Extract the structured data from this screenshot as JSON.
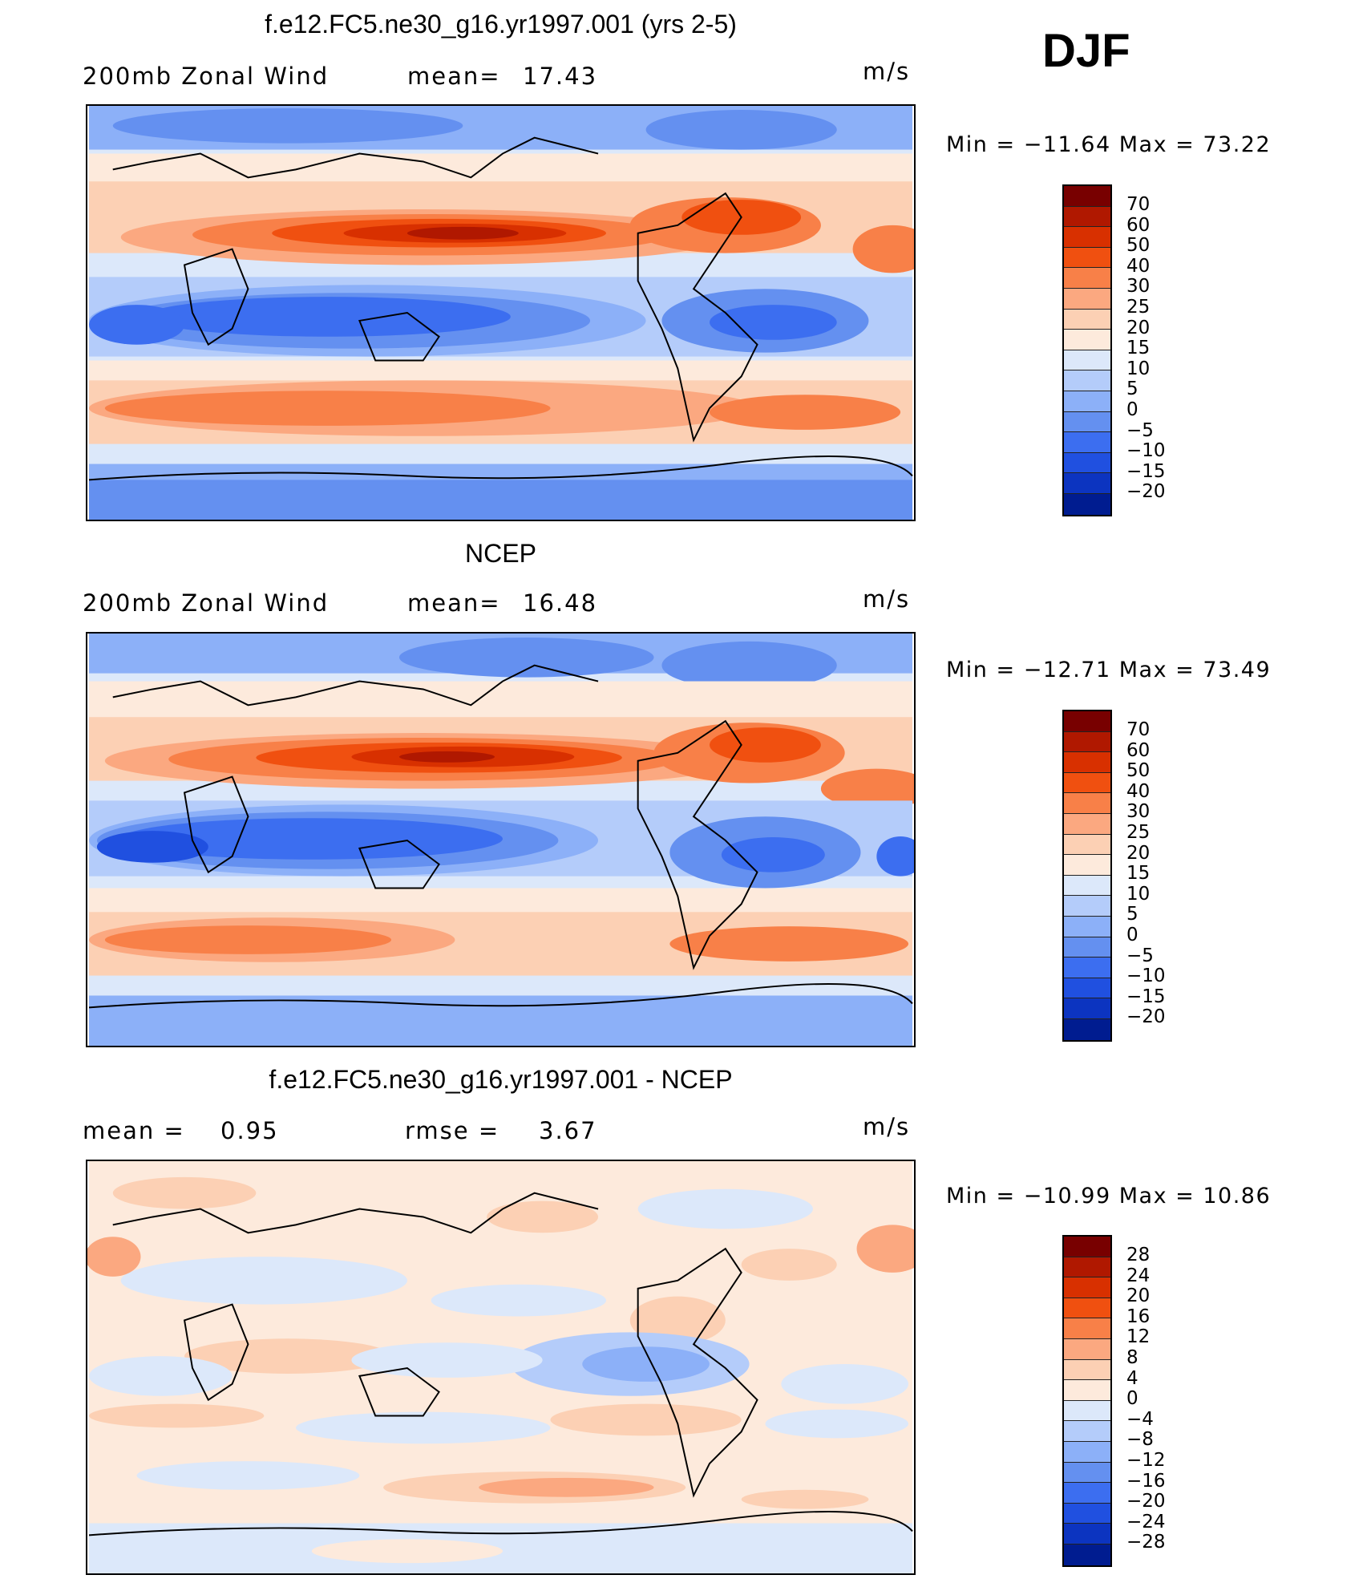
{
  "season": "DJF",
  "panels": [
    {
      "title": "f.e12.FC5.ne30_g16.yr1997.001 (yrs 2-5)",
      "left_label": "200mb  Zonal  Wind",
      "stat1_label": "mean=",
      "stat1_value": "17.43",
      "stat2_label": "",
      "stat2_value": "",
      "units": "m/s",
      "min_label": "Min  =",
      "min_value": "−11.64",
      "max_label": "Max  =",
      "max_value": "73.22"
    },
    {
      "title": "NCEP",
      "left_label": "200mb  Zonal  Wind",
      "stat1_label": "mean=",
      "stat1_value": "16.48",
      "stat2_label": "",
      "stat2_value": "",
      "units": "m/s",
      "min_label": "Min  =",
      "min_value": "−12.71",
      "max_label": "Max  =",
      "max_value": "73.49"
    },
    {
      "title": "f.e12.FC5.ne30_g16.yr1997.001 - NCEP",
      "left_label": "mean  =",
      "stat1_label": "",
      "stat1_value": "0.95",
      "stat2_label": "rmse  =",
      "stat2_value": "3.67",
      "units": "m/s",
      "min_label": "Min  =",
      "min_value": "−10.99",
      "max_label": "Max  =",
      "max_value": "10.86"
    }
  ],
  "colorbars": {
    "field": {
      "labels": [
        "70",
        "60",
        "50",
        "40",
        "30",
        "25",
        "20",
        "15",
        "10",
        "5",
        "0",
        "−5",
        "−10",
        "−15",
        "−20"
      ],
      "colors": [
        "#780000",
        "#b01800",
        "#d83000",
        "#f05010",
        "#f88048",
        "#fba880",
        "#fcd0b4",
        "#fdeadc",
        "#dce8fa",
        "#b4ccfa",
        "#8cb0f8",
        "#6490f0",
        "#3c6ef0",
        "#2050e0",
        "#0c34c0",
        "#001c90"
      ]
    },
    "diff": {
      "labels": [
        "28",
        "24",
        "20",
        "16",
        "12",
        "8",
        "4",
        "0",
        "−4",
        "−8",
        "−12",
        "−16",
        "−20",
        "−24",
        "−28"
      ],
      "colors": [
        "#780000",
        "#b01800",
        "#d83000",
        "#f05010",
        "#f88048",
        "#fba880",
        "#fcd0b4",
        "#fdeadc",
        "#dce8fa",
        "#b4ccfa",
        "#8cb0f8",
        "#6490f0",
        "#3c6ef0",
        "#2050e0",
        "#0c34c0",
        "#001c90"
      ]
    }
  },
  "chart_data": [
    {
      "type": "heatmap",
      "title": "f.e12.FC5.ne30_g16.yr1997.001 (yrs 2-5)",
      "variable": "200mb Zonal Wind",
      "units": "m/s",
      "mean": 17.43,
      "min": -11.64,
      "max": 73.22,
      "contour_levels": [
        -20,
        -15,
        -10,
        -5,
        0,
        5,
        10,
        15,
        20,
        25,
        30,
        40,
        50,
        60,
        70
      ],
      "features": {
        "asian_jet_max_approx": 70,
        "north_american_jet_approx": 50,
        "tropical_easterlies_min_approx": -10,
        "southern_hemisphere_jet_approx": 40
      }
    },
    {
      "type": "heatmap",
      "title": "NCEP",
      "variable": "200mb Zonal Wind",
      "units": "m/s",
      "mean": 16.48,
      "min": -12.71,
      "max": 73.49,
      "contour_levels": [
        -20,
        -15,
        -10,
        -5,
        0,
        5,
        10,
        15,
        20,
        25,
        30,
        40,
        50,
        60,
        70
      ],
      "features": {
        "asian_jet_max_approx": 70,
        "north_american_jet_approx": 50,
        "tropical_easterlies_min_approx": -10,
        "southern_hemisphere_jet_approx": 40
      }
    },
    {
      "type": "heatmap",
      "title": "f.e12.FC5.ne30_g16.yr1997.001 - NCEP",
      "units": "m/s",
      "mean": 0.95,
      "rmse": 3.67,
      "min": -10.99,
      "max": 10.86,
      "contour_levels": [
        -28,
        -24,
        -20,
        -16,
        -12,
        -8,
        -4,
        0,
        4,
        8,
        12,
        16,
        20,
        24,
        28
      ]
    }
  ]
}
